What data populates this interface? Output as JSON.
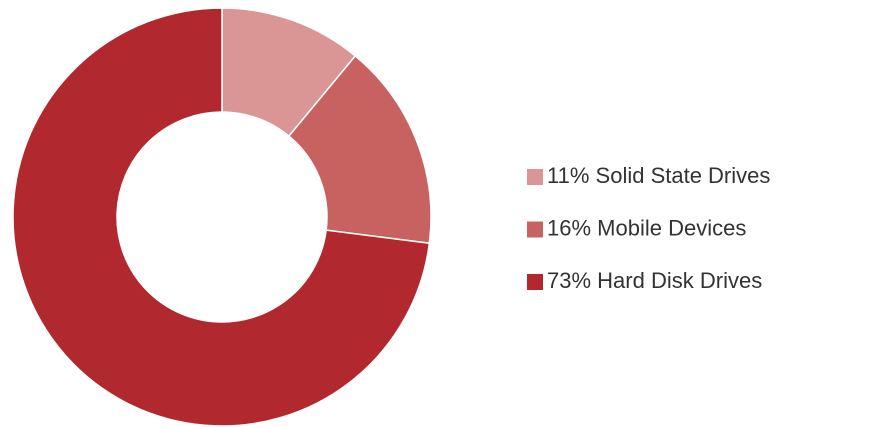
{
  "chart_data": {
    "type": "pie",
    "categories": [
      "Solid State Drives",
      "Mobile Devices",
      "Hard Disk Drives"
    ],
    "values": [
      11,
      16,
      73
    ],
    "value_labels": [
      "11%",
      "16%",
      "73%"
    ],
    "colors": [
      "#d99694",
      "#c86260",
      "#b1282e"
    ],
    "donut": true,
    "legend": "right"
  }
}
